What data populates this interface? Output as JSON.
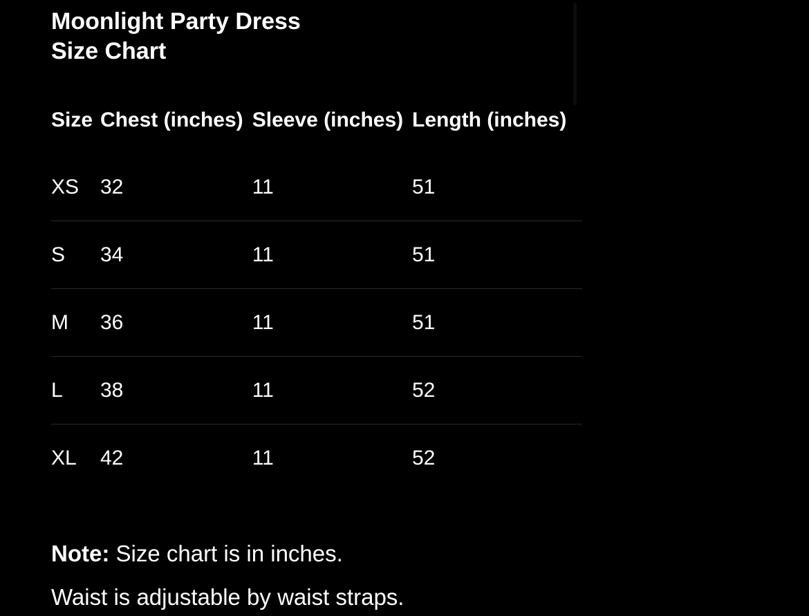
{
  "title_line1": "Moonlight Party Dress",
  "title_line2": "Size Chart",
  "table": {
    "headers": [
      "Size",
      "Chest (inches)",
      "Sleeve (inches)",
      "Length (inches)"
    ],
    "rows": [
      [
        "XS",
        "32",
        "11",
        "51"
      ],
      [
        "S",
        "34",
        "11",
        "51"
      ],
      [
        "M",
        "36",
        "11",
        "51"
      ],
      [
        "L",
        "38",
        "11",
        "52"
      ],
      [
        "XL",
        "42",
        "11",
        "52"
      ]
    ]
  },
  "note": {
    "label": "Note:",
    "text": " Size chart is in inches.",
    "line2": "Waist is adjustable by waist straps."
  }
}
